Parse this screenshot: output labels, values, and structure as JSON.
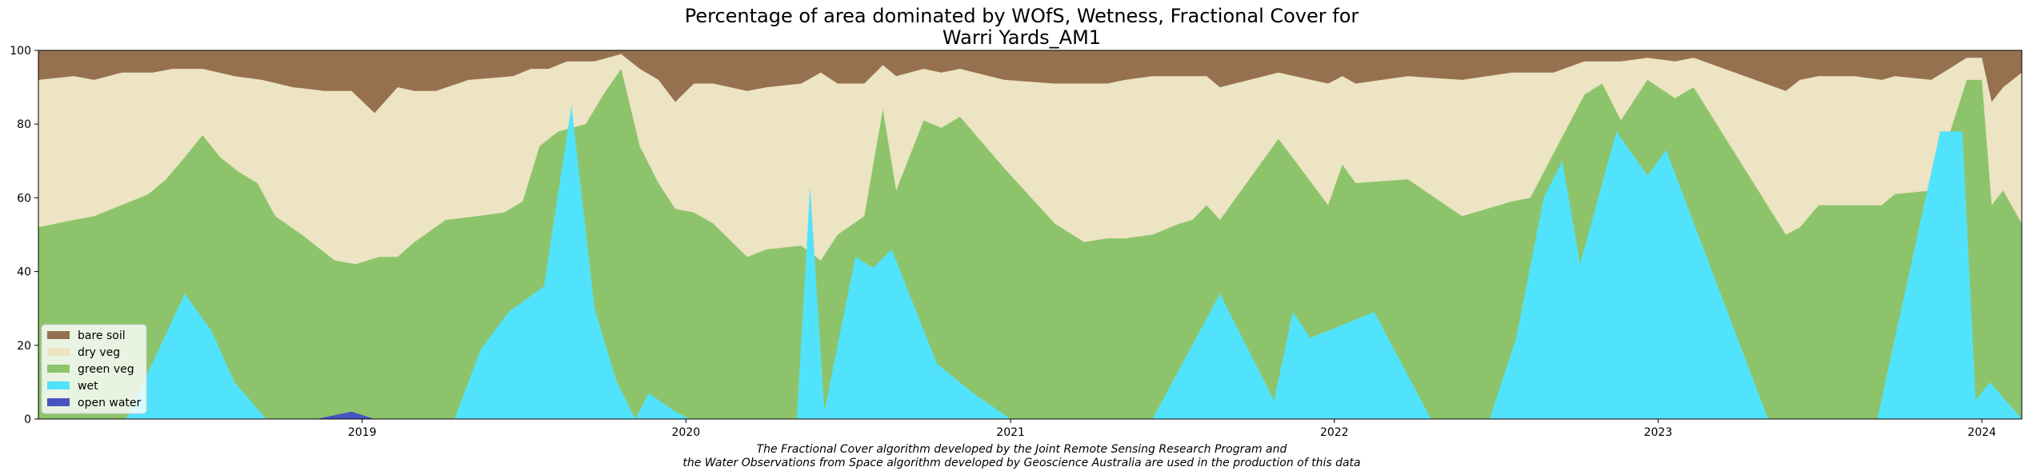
{
  "chart_data": {
    "type": "area",
    "stacked": true,
    "title_lines": [
      "Percentage of area dominated by WOfS, Wetness, Fractional Cover for",
      "Warri Yards_AM1"
    ],
    "xlabel": "",
    "ylabel": "",
    "ylim": [
      0,
      100
    ],
    "xlim": [
      "2018-01-01",
      "2024-02-15"
    ],
    "y_ticks": [
      "0",
      "20",
      "40",
      "60",
      "80",
      "100"
    ],
    "x_ticks": [
      {
        "label": "2019",
        "date": "2019-01-01"
      },
      {
        "label": "2020",
        "date": "2020-01-01"
      },
      {
        "label": "2021",
        "date": "2021-01-01"
      },
      {
        "label": "2022",
        "date": "2022-01-01"
      },
      {
        "label": "2023",
        "date": "2023-01-01"
      },
      {
        "label": "2024",
        "date": "2024-01-01"
      }
    ],
    "grid": false,
    "legend_position": "lower-left",
    "legend": [
      {
        "name": "bare soil",
        "color": "#967150"
      },
      {
        "name": "dry veg",
        "color": "#ece4c2"
      },
      {
        "name": "green veg",
        "color": "#8dc46b"
      },
      {
        "name": "wet",
        "color": "#52e3fc"
      },
      {
        "name": "open water",
        "color": "#4853c2"
      }
    ],
    "series_order_bottom_to_top": [
      "open water",
      "wet",
      "green veg",
      "dry veg",
      "bare soil"
    ],
    "open_water": [
      {
        "x": "2018-11-10",
        "y": 0
      },
      {
        "x": "2018-12-20",
        "y": 2
      },
      {
        "x": "2019-01-15",
        "y": 0
      }
    ],
    "wet": [
      {
        "x": "2018-01-01",
        "y": 0
      },
      {
        "x": "2018-04-10",
        "y": 0
      },
      {
        "x": "2018-06-15",
        "y": 34
      },
      {
        "x": "2018-07-15",
        "y": 24
      },
      {
        "x": "2018-08-10",
        "y": 10
      },
      {
        "x": "2018-09-15",
        "y": 0
      },
      {
        "x": "2019-04-15",
        "y": 0
      },
      {
        "x": "2019-05-15",
        "y": 19
      },
      {
        "x": "2019-06-15",
        "y": 29
      },
      {
        "x": "2019-07-25",
        "y": 36
      },
      {
        "x": "2019-08-25",
        "y": 85
      },
      {
        "x": "2019-09-20",
        "y": 30
      },
      {
        "x": "2019-10-15",
        "y": 10
      },
      {
        "x": "2019-11-05",
        "y": 0
      },
      {
        "x": "2019-11-20",
        "y": 7
      },
      {
        "x": "2019-12-20",
        "y": 2
      },
      {
        "x": "2020-01-05",
        "y": 0
      },
      {
        "x": "2020-05-05",
        "y": 0
      },
      {
        "x": "2020-05-20",
        "y": 63
      },
      {
        "x": "2020-06-05",
        "y": 2
      },
      {
        "x": "2020-07-10",
        "y": 44
      },
      {
        "x": "2020-07-30",
        "y": 41
      },
      {
        "x": "2020-08-20",
        "y": 46
      },
      {
        "x": "2020-10-10",
        "y": 15
      },
      {
        "x": "2020-11-20",
        "y": 7
      },
      {
        "x": "2021-01-01",
        "y": 0
      },
      {
        "x": "2021-06-10",
        "y": 0
      },
      {
        "x": "2021-08-25",
        "y": 34
      },
      {
        "x": "2021-10-25",
        "y": 5
      },
      {
        "x": "2021-11-15",
        "y": 29
      },
      {
        "x": "2021-12-05",
        "y": 22
      },
      {
        "x": "2022-01-15",
        "y": 26
      },
      {
        "x": "2022-02-15",
        "y": 29
      },
      {
        "x": "2022-04-20",
        "y": 0
      },
      {
        "x": "2022-06-25",
        "y": 0
      },
      {
        "x": "2022-07-25",
        "y": 22
      },
      {
        "x": "2022-08-25",
        "y": 60
      },
      {
        "x": "2022-09-15",
        "y": 70
      },
      {
        "x": "2022-10-05",
        "y": 42
      },
      {
        "x": "2022-11-15",
        "y": 78
      },
      {
        "x": "2022-12-20",
        "y": 66
      },
      {
        "x": "2023-01-10",
        "y": 73
      },
      {
        "x": "2023-05-05",
        "y": 0
      },
      {
        "x": "2023-09-05",
        "y": 0
      },
      {
        "x": "2023-11-15",
        "y": 78
      },
      {
        "x": "2023-12-10",
        "y": 78
      },
      {
        "x": "2023-12-25",
        "y": 5
      },
      {
        "x": "2024-01-10",
        "y": 10
      },
      {
        "x": "2024-02-15",
        "y": 0
      }
    ],
    "green_veg_top": [
      {
        "x": "2018-01-01",
        "y": 52
      },
      {
        "x": "2018-01-20",
        "y": 53
      },
      {
        "x": "2018-02-10",
        "y": 54
      },
      {
        "x": "2018-03-05",
        "y": 55
      },
      {
        "x": "2018-03-25",
        "y": 57
      },
      {
        "x": "2018-04-15",
        "y": 59
      },
      {
        "x": "2018-05-05",
        "y": 61
      },
      {
        "x": "2018-05-25",
        "y": 65
      },
      {
        "x": "2018-06-15",
        "y": 71
      },
      {
        "x": "2018-07-05",
        "y": 77
      },
      {
        "x": "2018-07-25",
        "y": 71
      },
      {
        "x": "2018-08-15",
        "y": 67
      },
      {
        "x": "2018-09-05",
        "y": 64
      },
      {
        "x": "2018-09-25",
        "y": 55
      },
      {
        "x": "2018-10-25",
        "y": 50
      },
      {
        "x": "2018-12-01",
        "y": 43
      },
      {
        "x": "2018-12-25",
        "y": 42
      },
      {
        "x": "2019-01-20",
        "y": 44
      },
      {
        "x": "2019-02-10",
        "y": 44
      },
      {
        "x": "2019-03-01",
        "y": 48
      },
      {
        "x": "2019-04-05",
        "y": 54
      },
      {
        "x": "2019-05-10",
        "y": 55
      },
      {
        "x": "2019-06-10",
        "y": 56
      },
      {
        "x": "2019-07-01",
        "y": 59
      },
      {
        "x": "2019-07-20",
        "y": 74
      },
      {
        "x": "2019-08-10",
        "y": 78
      },
      {
        "x": "2019-09-10",
        "y": 80
      },
      {
        "x": "2019-09-30",
        "y": 88
      },
      {
        "x": "2019-10-20",
        "y": 95
      },
      {
        "x": "2019-11-10",
        "y": 74
      },
      {
        "x": "2019-12-01",
        "y": 64
      },
      {
        "x": "2019-12-20",
        "y": 57
      },
      {
        "x": "2020-01-10",
        "y": 56
      },
      {
        "x": "2020-02-01",
        "y": 53
      },
      {
        "x": "2020-03-10",
        "y": 44
      },
      {
        "x": "2020-04-01",
        "y": 46
      },
      {
        "x": "2020-05-10",
        "y": 47
      },
      {
        "x": "2020-06-01",
        "y": 43
      },
      {
        "x": "2020-06-20",
        "y": 50
      },
      {
        "x": "2020-07-20",
        "y": 55
      },
      {
        "x": "2020-08-10",
        "y": 84
      },
      {
        "x": "2020-08-25",
        "y": 62
      },
      {
        "x": "2020-09-25",
        "y": 81
      },
      {
        "x": "2020-10-15",
        "y": 79
      },
      {
        "x": "2020-11-05",
        "y": 82
      },
      {
        "x": "2020-12-25",
        "y": 68
      },
      {
        "x": "2021-02-20",
        "y": 53
      },
      {
        "x": "2021-03-25",
        "y": 48
      },
      {
        "x": "2021-04-20",
        "y": 49
      },
      {
        "x": "2021-05-10",
        "y": 49
      },
      {
        "x": "2021-06-10",
        "y": 50
      },
      {
        "x": "2021-07-10",
        "y": 53
      },
      {
        "x": "2021-07-25",
        "y": 54
      },
      {
        "x": "2021-08-10",
        "y": 58
      },
      {
        "x": "2021-08-25",
        "y": 54
      },
      {
        "x": "2021-10-30",
        "y": 76
      },
      {
        "x": "2021-12-25",
        "y": 58
      },
      {
        "x": "2022-01-10",
        "y": 69
      },
      {
        "x": "2022-01-25",
        "y": 64
      },
      {
        "x": "2022-03-25",
        "y": 65
      },
      {
        "x": "2022-05-25",
        "y": 55
      },
      {
        "x": "2022-07-20",
        "y": 59
      },
      {
        "x": "2022-08-10",
        "y": 60
      },
      {
        "x": "2022-09-05",
        "y": 72
      },
      {
        "x": "2022-10-10",
        "y": 88
      },
      {
        "x": "2022-10-30",
        "y": 91
      },
      {
        "x": "2022-11-20",
        "y": 81
      },
      {
        "x": "2022-12-20",
        "y": 92
      },
      {
        "x": "2023-01-20",
        "y": 87
      },
      {
        "x": "2023-02-10",
        "y": 90
      },
      {
        "x": "2023-05-25",
        "y": 50
      },
      {
        "x": "2023-06-10",
        "y": 52
      },
      {
        "x": "2023-07-01",
        "y": 58
      },
      {
        "x": "2023-08-10",
        "y": 58
      },
      {
        "x": "2023-09-10",
        "y": 58
      },
      {
        "x": "2023-09-25",
        "y": 61
      },
      {
        "x": "2023-11-05",
        "y": 62
      },
      {
        "x": "2023-12-15",
        "y": 92
      },
      {
        "x": "2024-01-01",
        "y": 92
      },
      {
        "x": "2024-01-12",
        "y": 58
      },
      {
        "x": "2024-01-25",
        "y": 62
      },
      {
        "x": "2024-02-15",
        "y": 53
      }
    ],
    "dry_veg_top": [
      {
        "x": "2018-01-01",
        "y": 92
      },
      {
        "x": "2018-02-10",
        "y": 93
      },
      {
        "x": "2018-03-05",
        "y": 92
      },
      {
        "x": "2018-04-05",
        "y": 94
      },
      {
        "x": "2018-05-10",
        "y": 94
      },
      {
        "x": "2018-06-01",
        "y": 95
      },
      {
        "x": "2018-07-05",
        "y": 95
      },
      {
        "x": "2018-08-10",
        "y": 93
      },
      {
        "x": "2018-09-10",
        "y": 92
      },
      {
        "x": "2018-10-15",
        "y": 90
      },
      {
        "x": "2018-11-20",
        "y": 89
      },
      {
        "x": "2018-12-20",
        "y": 89
      },
      {
        "x": "2019-01-15",
        "y": 83
      },
      {
        "x": "2019-02-10",
        "y": 90
      },
      {
        "x": "2019-03-01",
        "y": 89
      },
      {
        "x": "2019-03-25",
        "y": 89
      },
      {
        "x": "2019-05-01",
        "y": 92
      },
      {
        "x": "2019-06-20",
        "y": 93
      },
      {
        "x": "2019-07-10",
        "y": 95
      },
      {
        "x": "2019-07-30",
        "y": 95
      },
      {
        "x": "2019-08-20",
        "y": 97
      },
      {
        "x": "2019-09-20",
        "y": 97
      },
      {
        "x": "2019-10-20",
        "y": 99
      },
      {
        "x": "2019-11-10",
        "y": 95
      },
      {
        "x": "2019-12-01",
        "y": 92
      },
      {
        "x": "2019-12-20",
        "y": 86
      },
      {
        "x": "2020-01-10",
        "y": 91
      },
      {
        "x": "2020-02-01",
        "y": 91
      },
      {
        "x": "2020-03-10",
        "y": 89
      },
      {
        "x": "2020-04-01",
        "y": 90
      },
      {
        "x": "2020-05-10",
        "y": 91
      },
      {
        "x": "2020-06-01",
        "y": 94
      },
      {
        "x": "2020-06-20",
        "y": 91
      },
      {
        "x": "2020-07-20",
        "y": 91
      },
      {
        "x": "2020-08-10",
        "y": 96
      },
      {
        "x": "2020-08-25",
        "y": 93
      },
      {
        "x": "2020-09-25",
        "y": 95
      },
      {
        "x": "2020-10-15",
        "y": 94
      },
      {
        "x": "2020-11-05",
        "y": 95
      },
      {
        "x": "2020-12-25",
        "y": 92
      },
      {
        "x": "2021-02-20",
        "y": 91
      },
      {
        "x": "2021-03-25",
        "y": 91
      },
      {
        "x": "2021-04-20",
        "y": 91
      },
      {
        "x": "2021-05-10",
        "y": 92
      },
      {
        "x": "2021-06-10",
        "y": 93
      },
      {
        "x": "2021-07-10",
        "y": 93
      },
      {
        "x": "2021-07-25",
        "y": 93
      },
      {
        "x": "2021-08-10",
        "y": 93
      },
      {
        "x": "2021-08-25",
        "y": 90
      },
      {
        "x": "2021-10-30",
        "y": 94
      },
      {
        "x": "2021-12-25",
        "y": 91
      },
      {
        "x": "2022-01-10",
        "y": 93
      },
      {
        "x": "2022-01-25",
        "y": 91
      },
      {
        "x": "2022-03-25",
        "y": 93
      },
      {
        "x": "2022-05-25",
        "y": 92
      },
      {
        "x": "2022-07-20",
        "y": 94
      },
      {
        "x": "2022-08-10",
        "y": 94
      },
      {
        "x": "2022-09-05",
        "y": 94
      },
      {
        "x": "2022-10-10",
        "y": 97
      },
      {
        "x": "2022-10-30",
        "y": 97
      },
      {
        "x": "2022-11-20",
        "y": 97
      },
      {
        "x": "2022-12-20",
        "y": 98
      },
      {
        "x": "2023-01-20",
        "y": 97
      },
      {
        "x": "2023-02-10",
        "y": 98
      },
      {
        "x": "2023-05-25",
        "y": 89
      },
      {
        "x": "2023-06-10",
        "y": 92
      },
      {
        "x": "2023-07-01",
        "y": 93
      },
      {
        "x": "2023-08-10",
        "y": 93
      },
      {
        "x": "2023-09-10",
        "y": 92
      },
      {
        "x": "2023-09-25",
        "y": 93
      },
      {
        "x": "2023-11-05",
        "y": 92
      },
      {
        "x": "2023-12-15",
        "y": 98
      },
      {
        "x": "2024-01-01",
        "y": 98
      },
      {
        "x": "2024-01-12",
        "y": 86
      },
      {
        "x": "2024-01-25",
        "y": 90
      },
      {
        "x": "2024-02-15",
        "y": 94
      }
    ],
    "bare_soil_top": 100
  },
  "caption_lines": [
    "The Fractional Cover algorithm developed by the Joint Remote Sensing Research Program and",
    "the Water Observations from Space algorithm developed by Geoscience Australia are used in the production of this data"
  ]
}
